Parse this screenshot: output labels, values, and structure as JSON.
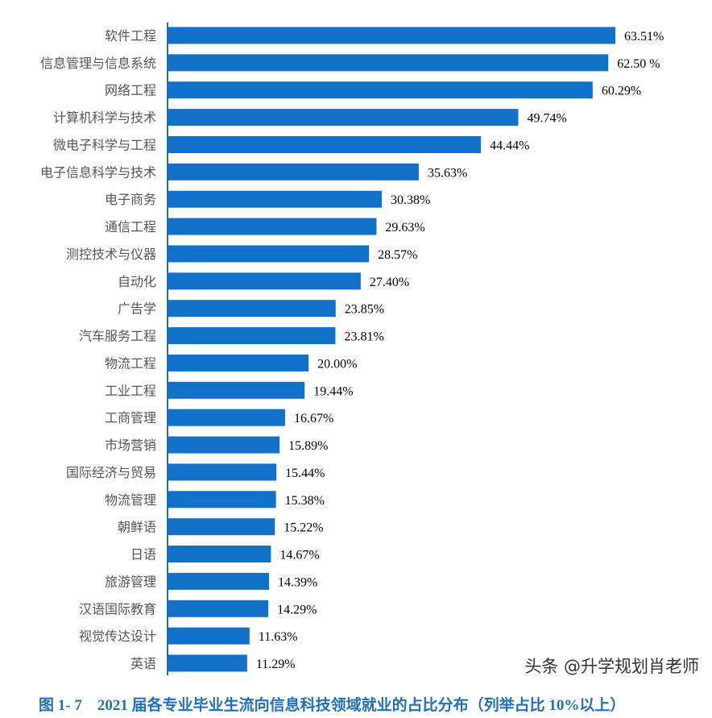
{
  "chart_data": {
    "type": "bar",
    "orientation": "horizontal",
    "title": "图 1- 7　2021 届各专业毕业生流向信息科技领域就业的占比分布（列举占比 10%以上）",
    "categories": [
      "软件工程",
      "信息管理与信息系统",
      "网络工程",
      "计算机科学与技术",
      "微电子科学与工程",
      "电子信息科学与技术",
      "电子商务",
      "通信工程",
      "测控技术与仪器",
      "自动化",
      "广告学",
      "汽车服务工程",
      "物流工程",
      "工业工程",
      "工商管理",
      "市场营销",
      "国际经济与贸易",
      "物流管理",
      "朝鲜语",
      "日语",
      "旅游管理",
      "汉语国际教育",
      "视觉传达设计",
      "英语"
    ],
    "values": [
      63.51,
      62.5,
      60.29,
      49.74,
      44.44,
      35.63,
      30.38,
      29.63,
      28.57,
      27.4,
      23.85,
      23.81,
      20.0,
      19.44,
      16.67,
      15.89,
      15.44,
      15.38,
      15.22,
      14.67,
      14.39,
      14.29,
      11.63,
      11.29
    ],
    "value_labels": [
      "63.51%",
      "62.50 %",
      "60.29%",
      "49.74%",
      "44.44%",
      "35.63%",
      "30.38%",
      "29.63%",
      "28.57%",
      "27.40%",
      "23.85%",
      "23.81%",
      "20.00%",
      "19.44%",
      "16.67%",
      "15.89%",
      "15.44%",
      "15.38%",
      "15.22%",
      "14.67%",
      "14.39%",
      "14.29%",
      "11.63%",
      "11.29%"
    ],
    "unit": "%",
    "bar_color": "#1170c8",
    "grid": false,
    "legend": "none"
  },
  "watermark": "头条 @升学规划肖老师"
}
